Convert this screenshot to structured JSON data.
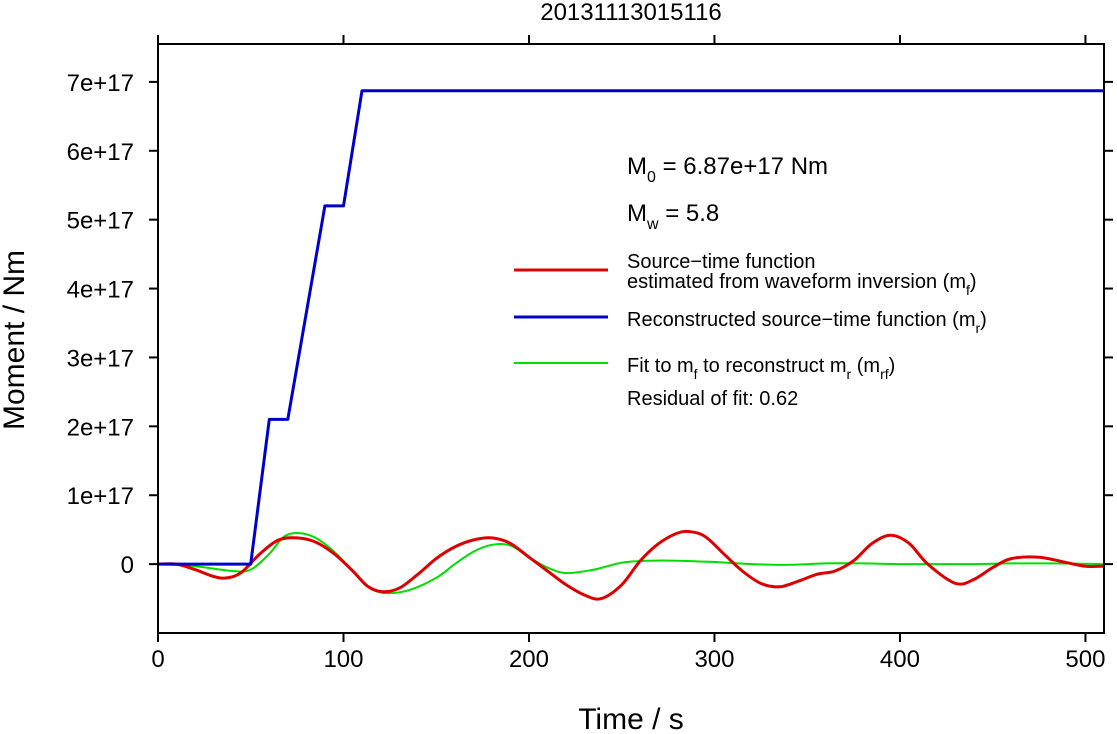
{
  "chart_data": {
    "type": "line",
    "title": "20131113015116",
    "xlabel": "Time / s",
    "ylabel": "Moment / Nm",
    "xlim": [
      0,
      510
    ],
    "ylim": [
      -1e+17,
      7.55e+17
    ],
    "x_ticks": [
      0,
      100,
      200,
      300,
      400,
      500
    ],
    "x_tick_labels": [
      "0",
      "100",
      "200",
      "300",
      "400",
      "500"
    ],
    "y_ticks": [
      0,
      1e+17,
      2e+17,
      3e+17,
      4e+17,
      5e+17,
      6e+17,
      7e+17
    ],
    "y_tick_labels": [
      "0",
      "1e+17",
      "2e+17",
      "3e+17",
      "4e+17",
      "5e+17",
      "6e+17",
      "7e+17"
    ],
    "grid": false,
    "annotations": {
      "m0": {
        "base": "M",
        "sub": "0",
        "rest": " = 6.87e+17 Nm"
      },
      "mw": {
        "base": "M",
        "sub": "w",
        "rest": " = 5.8"
      }
    },
    "legend": {
      "placement": "right",
      "entries": [
        {
          "color": "#dd0000",
          "lines": [
            {
              "text": "Source−time function"
            },
            {
              "text": "estimated from waveform inversion (m",
              "sub": "f",
              "tail": ")"
            }
          ]
        },
        {
          "color": "#0000cc",
          "lines": [
            {
              "text": "Reconstructed source−time function (m",
              "sub": "r",
              "tail": ")"
            }
          ]
        },
        {
          "color": "#00dd00",
          "lines": [
            {
              "text": "Fit to m",
              "sub": "f",
              "tail": " to reconstruct m",
              "sub2": "r",
              "tail2": " (m",
              "sub3": "rf",
              "tail3": ")"
            },
            {
              "text": "Residual of fit: 0.62"
            }
          ]
        }
      ]
    },
    "series": [
      {
        "name": "Source−time function estimated from waveform inversion (mf)",
        "color": "#dd0000",
        "x": [
          0,
          10,
          20,
          30,
          37,
          45,
          55,
          65,
          75,
          85,
          95,
          105,
          113,
          121,
          130,
          140,
          150,
          160,
          170,
          180,
          190,
          200,
          210,
          220,
          230,
          239,
          250,
          260,
          270,
          280,
          287,
          295,
          305,
          315,
          325,
          335,
          345,
          355,
          365,
          375,
          385,
          395,
          405,
          415,
          430,
          440,
          450,
          460,
          475,
          490,
          500,
          510
        ],
        "y": [
          0,
          0,
          -8000000000000000.0,
          -1.8e+16,
          -2e+16,
          -1.2e+16,
          1.5e+16,
          3.5e+16,
          3.8e+16,
          3.2e+16,
          1.5e+16,
          -1e+16,
          -3.2e+16,
          -4e+16,
          -3.5e+16,
          -1.5e+16,
          8000000000000000.0,
          2.5e+16,
          3.5e+16,
          3.8e+16,
          3e+16,
          1e+16,
          -1e+16,
          -3e+16,
          -4.5e+16,
          -5e+16,
          -3e+16,
          5000000000000000.0,
          3e+16,
          4.5e+16,
          4.7e+16,
          4e+16,
          1.5e+16,
          -1e+16,
          -2.8e+16,
          -3.3e+16,
          -2.5e+16,
          -1.5e+16,
          -1e+16,
          5000000000000000.0,
          3e+16,
          4.2e+16,
          3e+16,
          0.0,
          -2.8e+16,
          -2.2e+16,
          -5000000000000000.0,
          8000000000000000.0,
          1e+16,
          2000000000000000.0,
          -3000000000000000.0,
          -3000000000000000.0
        ]
      },
      {
        "name": "Reconstructed source−time function (mr)",
        "color": "#0000cc",
        "x": [
          0,
          50,
          60,
          70,
          90,
          100,
          110,
          510
        ],
        "y": [
          0,
          0,
          2.1e+17,
          2.1e+17,
          5.2e+17,
          5.2e+17,
          6.87e+17,
          6.87e+17
        ]
      },
      {
        "name": "Fit to mf to reconstruct mr (mrf)",
        "color": "#00dd00",
        "x": [
          0,
          20,
          40,
          50,
          60,
          68,
          76,
          85,
          95,
          105,
          113,
          122,
          135,
          150,
          160,
          170,
          180,
          190,
          200,
          210,
          220,
          235,
          250,
          265,
          280,
          300,
          320,
          340,
          360,
          380,
          400,
          420,
          440,
          460,
          480,
          510
        ],
        "y": [
          0,
          -3000000000000000.0,
          -1e+16,
          -8000000000000000.0,
          1.5e+16,
          4e+16,
          4.5e+16,
          3.8e+16,
          1.8e+16,
          -1e+16,
          -3.3e+16,
          -4.2e+16,
          -3.8e+16,
          -2e+16,
          0.0,
          1.8e+16,
          2.8e+16,
          2.7e+16,
          1e+16,
          -5000000000000000.0,
          -1.3e+16,
          -8000000000000000.0,
          2000000000000000.0,
          5000000000000000.0,
          5000000000000000.0,
          3000000000000000.0,
          0.0,
          -1000000000000000.0,
          1000000000000000.0,
          1000000000000000.0,
          0.0,
          0.0,
          0.0,
          1000000000000000.0,
          1000000000000000.0,
          0.0
        ]
      }
    ]
  }
}
